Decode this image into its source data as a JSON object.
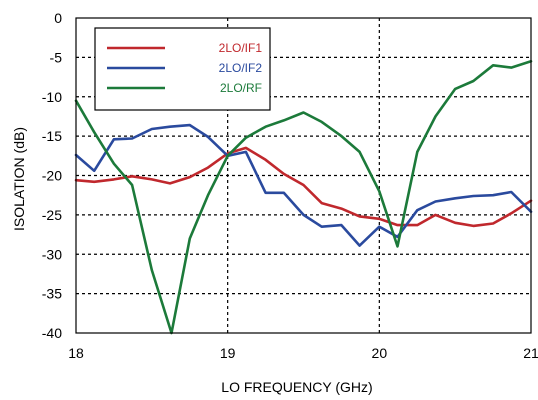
{
  "chart_data": {
    "type": "line",
    "title": "",
    "xlabel": "LO FREQUENCY (GHz)",
    "ylabel": "ISOLATION  (dB)",
    "xlim": [
      18,
      21
    ],
    "ylim": [
      -40,
      0
    ],
    "x_ticks": [
      18,
      19,
      20,
      21
    ],
    "y_ticks": [
      0,
      -5,
      -10,
      -15,
      -20,
      -25,
      -30,
      -35,
      -40
    ],
    "grid": true,
    "legend_placement": "top-left",
    "series": [
      {
        "name": "2LO/IF1",
        "color": "#c0282d",
        "x": [
          18.0,
          18.12,
          18.25,
          18.37,
          18.5,
          18.62,
          18.75,
          18.87,
          19.0,
          19.12,
          19.25,
          19.37,
          19.5,
          19.62,
          19.75,
          19.87,
          20.0,
          20.12,
          20.25,
          20.37,
          20.5,
          20.62,
          20.75,
          20.87,
          21.0
        ],
        "y": [
          -20.6,
          -20.8,
          -20.5,
          -20.1,
          -20.5,
          -21.0,
          -20.2,
          -19.0,
          -17.2,
          -16.5,
          -18.0,
          -19.8,
          -21.2,
          -23.5,
          -24.2,
          -25.2,
          -25.5,
          -26.3,
          -26.3,
          -25.0,
          -26.0,
          -26.4,
          -26.1,
          -24.8,
          -23.2
        ]
      },
      {
        "name": "2LO/IF2",
        "color": "#2a4a9e",
        "x": [
          18.0,
          18.12,
          18.25,
          18.37,
          18.5,
          18.62,
          18.75,
          18.87,
          19.0,
          19.12,
          19.25,
          19.37,
          19.5,
          19.62,
          19.75,
          19.87,
          20.0,
          20.12,
          20.25,
          20.37,
          20.5,
          20.62,
          20.75,
          20.87,
          21.0
        ],
        "y": [
          -17.4,
          -19.4,
          -15.4,
          -15.3,
          -14.1,
          -13.8,
          -13.6,
          -15.1,
          -17.5,
          -17.0,
          -22.2,
          -22.2,
          -25.0,
          -26.5,
          -26.3,
          -28.9,
          -26.5,
          -27.8,
          -24.4,
          -23.3,
          -22.9,
          -22.6,
          -22.5,
          -22.1,
          -24.6
        ]
      },
      {
        "name": "2LO/RF",
        "color": "#1c7a3a",
        "x": [
          18.0,
          18.12,
          18.25,
          18.37,
          18.5,
          18.63,
          18.75,
          18.87,
          19.0,
          19.12,
          19.25,
          19.37,
          19.5,
          19.62,
          19.75,
          19.87,
          20.0,
          20.12,
          20.25,
          20.37,
          20.5,
          20.62,
          20.75,
          20.87,
          21.0
        ],
        "y": [
          -10.5,
          -14.5,
          -18.5,
          -21.2,
          -32.0,
          -40.0,
          -28.0,
          -22.5,
          -17.5,
          -15.2,
          -13.8,
          -13.0,
          -12.0,
          -13.2,
          -15.0,
          -17.0,
          -22.0,
          -29.0,
          -17.0,
          -12.5,
          -9.0,
          -8.0,
          -6.0,
          -6.3,
          -5.5
        ]
      }
    ]
  }
}
